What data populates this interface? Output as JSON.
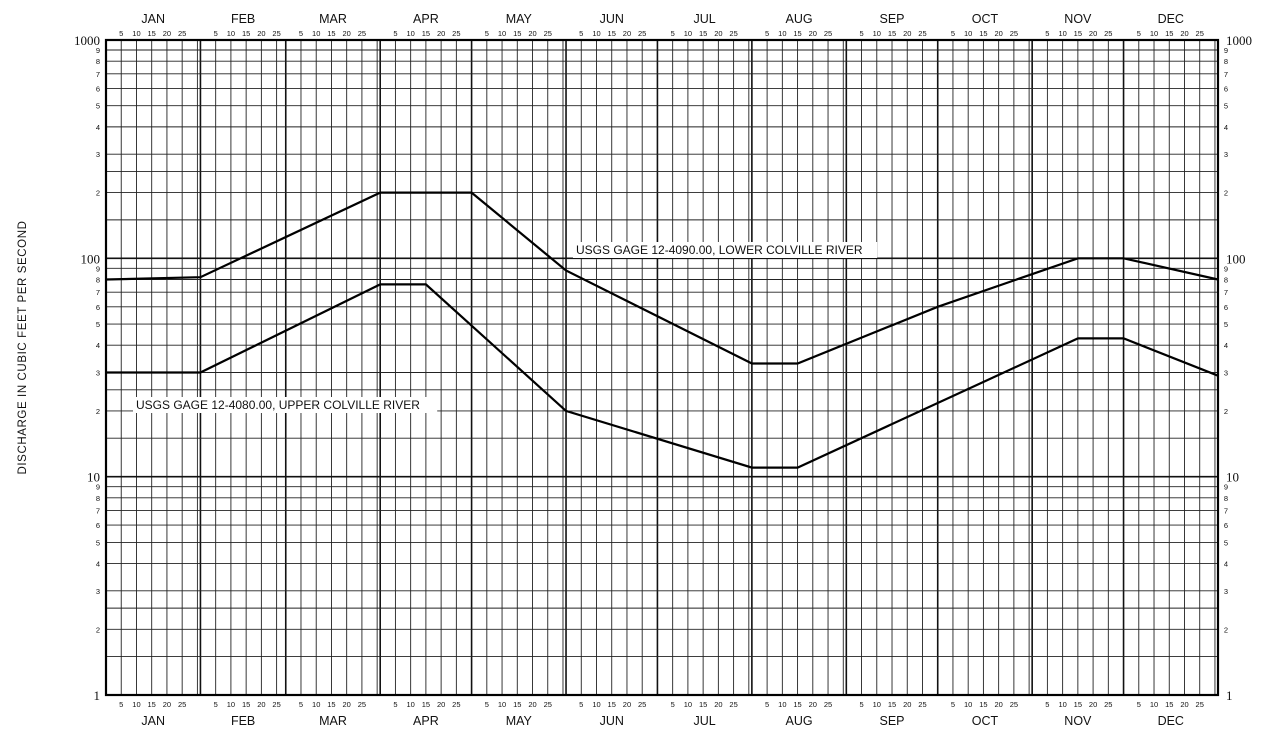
{
  "chart_data": {
    "type": "line",
    "title": "",
    "ylabel": "DISCHARGE IN CUBIC FEET PER SECOND",
    "xlabel": "",
    "y_scale": "log",
    "ylim": [
      1,
      1000
    ],
    "y_tick_labels": [
      "1",
      "10",
      "100",
      "1000"
    ],
    "y_minor_tick_labels": [
      "2",
      "3",
      "4",
      "5",
      "6",
      "7",
      "8",
      "9"
    ],
    "months": [
      "JAN",
      "FEB",
      "MAR",
      "APR",
      "MAY",
      "JUN",
      "JUL",
      "AUG",
      "SEP",
      "OCT",
      "NOV",
      "DEC"
    ],
    "day_ticks": [
      "5",
      "10",
      "15",
      "20",
      "25"
    ],
    "grid": true,
    "legend": "none",
    "series": [
      {
        "name": "USGS GAGE 12-4090.00, LOWER COLVILLE RIVER",
        "points": [
          {
            "x": "Jan 1",
            "y": 80
          },
          {
            "x": "Jan 31",
            "y": 82
          },
          {
            "x": "Mar 31",
            "y": 200
          },
          {
            "x": "Apr 30",
            "y": 200
          },
          {
            "x": "May 31",
            "y": 88
          },
          {
            "x": "Jul 31",
            "y": 33
          },
          {
            "x": "Aug 15",
            "y": 33
          },
          {
            "x": "Sep 30",
            "y": 60
          },
          {
            "x": "Nov 15",
            "y": 100
          },
          {
            "x": "Nov 30",
            "y": 100
          },
          {
            "x": "Dec 31",
            "y": 80
          }
        ]
      },
      {
        "name": "USGS GAGE 12-4080.00, UPPER COLVILLE RIVER",
        "points": [
          {
            "x": "Jan 1",
            "y": 30
          },
          {
            "x": "Jan 31",
            "y": 30
          },
          {
            "x": "Mar 31",
            "y": 76
          },
          {
            "x": "Apr 15",
            "y": 76
          },
          {
            "x": "May 31",
            "y": 20
          },
          {
            "x": "Jul 31",
            "y": 11
          },
          {
            "x": "Aug 15",
            "y": 11
          },
          {
            "x": "Nov 15",
            "y": 43
          },
          {
            "x": "Nov 30",
            "y": 43
          },
          {
            "x": "Dec 31",
            "y": 29
          }
        ]
      }
    ]
  }
}
